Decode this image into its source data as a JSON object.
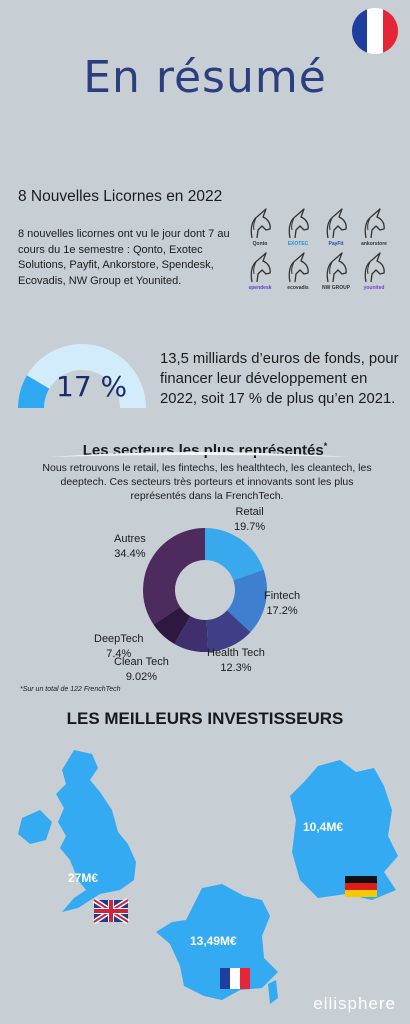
{
  "title": "En résumé",
  "unicorns": {
    "heading": "8 Nouvelles Licornes en 2022",
    "text": "8 nouvelles licornes ont vu le jour dont 7 au cours du 1e semestre : Qonto, Exotec Solutions, Payfit, Ankorstore, Spendesk, Ecovadis, NW Group et Younited.",
    "logos": [
      "Qonto",
      "EXOTEC",
      "PayFit",
      "ankorstore",
      "spendesk",
      "ecovadis",
      "NW GROUP",
      "younited"
    ]
  },
  "funds": {
    "percent": "17 %",
    "gauge_fraction": 0.17,
    "text": "13,5 milliards d’euros de fonds, pour financer leur développement en 2022, soit 17 % de plus qu’en 2021."
  },
  "sectors": {
    "heading": "Les secteurs les plus représentés",
    "asterisk": "*",
    "text": "Nous retrouvons le retail, les fintechs, les healthtech, les cleantech, les deeptech. Ces secteurs très porteurs et innovants sont les plus représentés dans la FrenchTech.",
    "footnote": "*Sur un total de 122 FrenchTech"
  },
  "chart_data": {
    "type": "pie",
    "categories": [
      "Retail",
      "Fintech",
      "Health Tech",
      "Clean Tech",
      "DeepTech",
      "Autres"
    ],
    "values": [
      19.7,
      17.2,
      12.3,
      9.02,
      7.4,
      34.4
    ],
    "labels": [
      "19.7%",
      "17.2%",
      "12.3%",
      "9.02%",
      "7.4%",
      "34.4%"
    ],
    "colors": [
      "#39a9ee",
      "#3f7fcf",
      "#3e3f86",
      "#3f2f6e",
      "#2f1840",
      "#4e2b5f"
    ]
  },
  "investors": {
    "heading": "LES MEILLEURS INVESTISSEURS",
    "uk_amount": "27M€",
    "de_amount": "10,4M€",
    "fr_amount": "13,49M€"
  },
  "colors": {
    "map": "#33aaf2",
    "title": "#2d3e7e",
    "background": "#c7ced4"
  },
  "brand": "ellisphere"
}
